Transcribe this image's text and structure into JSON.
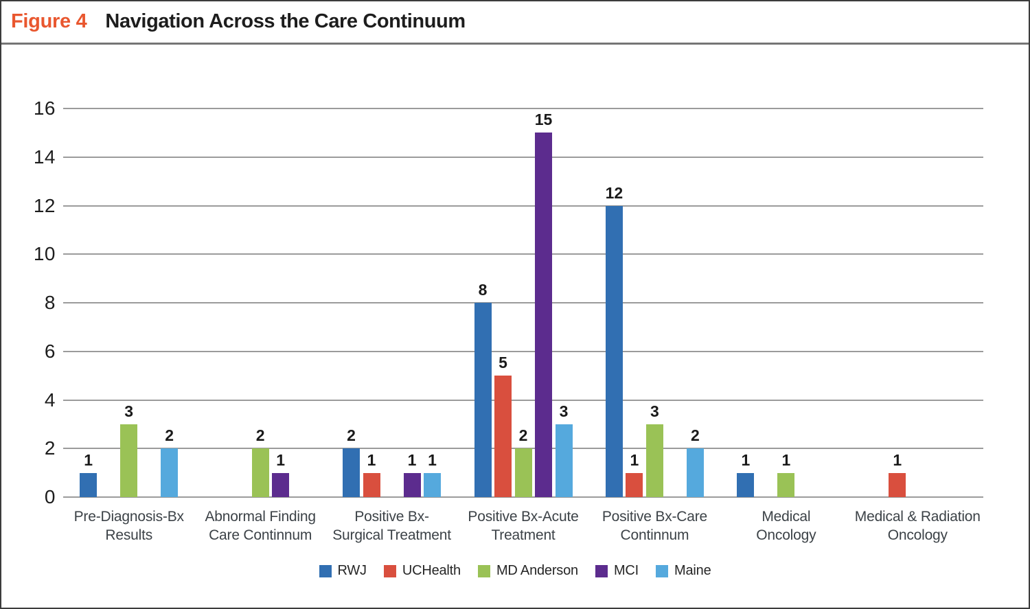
{
  "figure": {
    "label": "Figure 4",
    "title": "Navigation Across the Care Continuum"
  },
  "colors": {
    "figure_label_accent": "#e9572f",
    "gridline": "#9b9b9b",
    "text": "#1d1d1d"
  },
  "chart_data": {
    "type": "bar",
    "title": "Navigation Across the Care Continuum",
    "categories": [
      "Pre-Diagnosis-Bx Results",
      "Abnormal Finding Care Continnum",
      "Positive Bx-Surgical Treatment",
      "Positive Bx-Acute Treatment",
      "Positive Bx-Care Continnum",
      "Medical Oncology",
      "Medical & Radiation Oncology"
    ],
    "category_label_lines": [
      [
        "Pre-Diagnosis-Bx",
        "Results"
      ],
      [
        "Abnormal Finding",
        "Care Continnum"
      ],
      [
        "Positive Bx-",
        "Surgical Treatment"
      ],
      [
        "Positive Bx-Acute",
        "Treatment"
      ],
      [
        "Positive Bx-Care",
        "Continnum"
      ],
      [
        "Medical",
        "Oncology"
      ],
      [
        "Medical & Radiation",
        "Oncology"
      ]
    ],
    "series": [
      {
        "name": "RWJ",
        "color": "#316fb2",
        "values": [
          1,
          0,
          2,
          8,
          12,
          1,
          0
        ]
      },
      {
        "name": "UCHealth",
        "color": "#d94f3e",
        "values": [
          0,
          0,
          1,
          5,
          1,
          0,
          1
        ]
      },
      {
        "name": "MD Anderson",
        "color": "#9ac256",
        "values": [
          3,
          2,
          0,
          2,
          3,
          1,
          0
        ]
      },
      {
        "name": "MCI",
        "color": "#5c2c8e",
        "values": [
          0,
          1,
          1,
          15,
          0,
          0,
          0
        ]
      },
      {
        "name": "Maine",
        "color": "#55a9dd",
        "values": [
          2,
          0,
          1,
          3,
          2,
          0,
          0
        ]
      }
    ],
    "ylim": [
      0,
      16
    ],
    "yticks": [
      0,
      2,
      4,
      6,
      8,
      10,
      12,
      14,
      16
    ],
    "grid": true,
    "legend_position": "bottom",
    "bar_value_labels_shown": true,
    "note": "Bars with value 0 are not drawn; their slot is left empty."
  }
}
